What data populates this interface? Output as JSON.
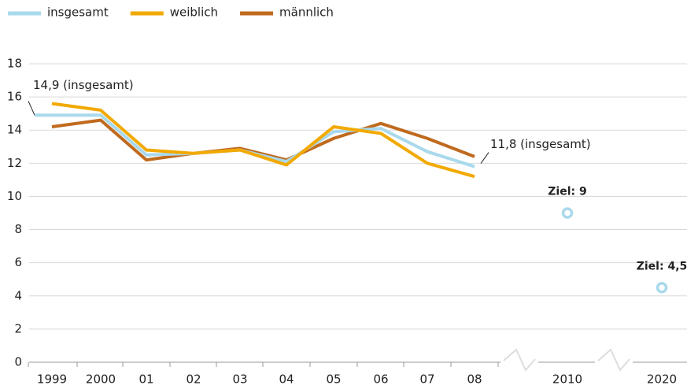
{
  "chart_data": {
    "type": "line",
    "categories": [
      "1999",
      "2000",
      "01",
      "02",
      "03",
      "04",
      "05",
      "06",
      "07",
      "08",
      "2010",
      "2020"
    ],
    "series": [
      {
        "name": "insgesamt",
        "color": "#a9d9ec",
        "values": [
          14.9,
          14.9,
          12.5,
          12.6,
          12.8,
          12.1,
          13.9,
          14.1,
          12.7,
          11.8,
          null,
          null
        ],
        "value_labels": [
          "14,9 (insgesamt)",
          null,
          null,
          null,
          null,
          null,
          null,
          null,
          null,
          "11,8 (insgesamt)",
          null,
          null
        ]
      },
      {
        "name": "weiblich",
        "color": "#f2a900",
        "values": [
          15.6,
          15.2,
          12.8,
          12.6,
          12.8,
          11.9,
          14.2,
          13.8,
          12.0,
          11.2,
          null,
          null
        ]
      },
      {
        "name": "männlich",
        "color": "#c06a1e",
        "values": [
          14.2,
          14.6,
          12.2,
          12.6,
          12.9,
          12.2,
          13.5,
          14.4,
          13.5,
          12.4,
          null,
          null
        ]
      }
    ],
    "targets": {
      "color": "#a9d9ec",
      "values": [
        null,
        null,
        null,
        null,
        null,
        null,
        null,
        null,
        null,
        null,
        9,
        4.5
      ],
      "value_labels": [
        null,
        null,
        null,
        null,
        null,
        null,
        null,
        null,
        null,
        null,
        "Ziel: 9",
        "Ziel: 4,5"
      ]
    },
    "ylim": [
      0,
      18
    ],
    "yticks": [
      0,
      2,
      4,
      6,
      8,
      10,
      12,
      14,
      16,
      18
    ],
    "grid": true
  }
}
